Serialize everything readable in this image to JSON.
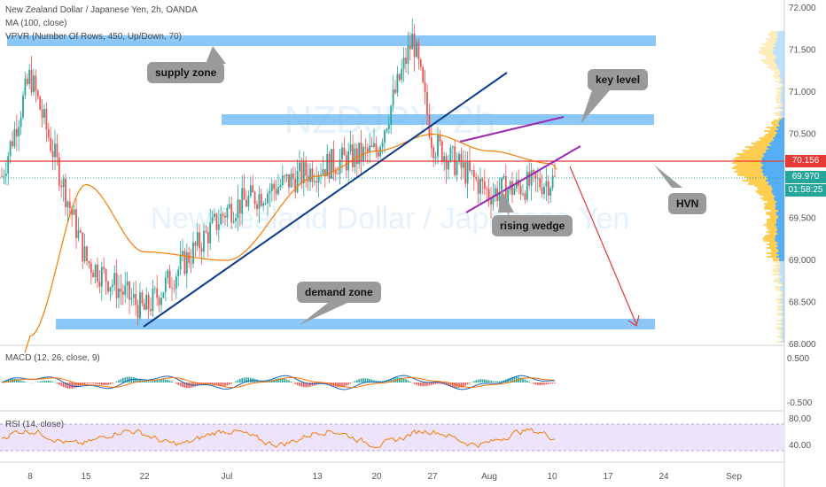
{
  "header": {
    "symbol_line": "New Zealand Dollar / Japanese Yen, 2h, OANDA",
    "ma_line": "MA (100, close)",
    "vpvr_line": "VPVR (Number Of Rows, 450, Up/Down, 70)",
    "macd_line": "MACD (12, 26, close, 9)",
    "rsi_line": "RSI (14, close)"
  },
  "watermark": {
    "ticker": "NZDJPY, 2h",
    "name": "New Zealand Dollar / Japanese Yen"
  },
  "annotations": {
    "supply_zone": "supply zone",
    "demand_zone": "demand zone",
    "key_level": "key level",
    "rising_wedge": "rising wedge",
    "hvn": "HVN"
  },
  "price_labels": {
    "current_line": "70.156",
    "last_price": "69.970",
    "countdown": "01:58:25"
  },
  "colors": {
    "zone_fill": "#64b5f6",
    "trendline": "#0d3c8c",
    "wedge": "#9c27b0",
    "ma": "#f57c00",
    "key_line": "#e53935",
    "up_candle": "#26a69a",
    "down_candle": "#ef5350",
    "macd": "#1565c0",
    "signal": "#ff6d00",
    "rsi": "#f57c00",
    "rsi_band": "#ede3fb",
    "vp_up": "#ffc83d",
    "vp_down": "#42a5f5"
  },
  "chart_data": [
    {
      "type": "line",
      "title": "New Zealand Dollar / Japanese Yen, 2h, OANDA",
      "x_ticks": [
        "8",
        "15",
        "22",
        "Jul",
        "13",
        "20",
        "27",
        "Aug",
        "10",
        "17",
        "24",
        "Sep"
      ],
      "y_ticks": [
        "72.000",
        "71.500",
        "71.000",
        "70.500",
        "70.000",
        "69.500",
        "69.000",
        "68.500",
        "68.000"
      ],
      "ylim": [
        68.0,
        72.0
      ],
      "price_path": [
        [
          "8",
          71.2
        ],
        [
          "15",
          69.0
        ],
        [
          "22",
          68.4
        ],
        [
          "Jul",
          69.6
        ],
        [
          "13",
          70.1
        ],
        [
          "20",
          70.3
        ],
        [
          "22Jul",
          71.65
        ],
        [
          "27",
          70.4
        ],
        [
          "Aug",
          69.8
        ],
        [
          "10",
          69.95
        ]
      ],
      "ma_path": [
        [
          "8",
          68.1
        ],
        [
          "15",
          69.9
        ],
        [
          "22",
          69.1
        ],
        [
          "Jul",
          69.0
        ],
        [
          "13",
          70.0
        ],
        [
          "20",
          70.3
        ],
        [
          "27",
          70.5
        ],
        [
          "Aug",
          70.3
        ],
        [
          "10",
          70.15
        ]
      ],
      "zones": [
        {
          "name": "supply zone",
          "low": 71.57,
          "high": 71.7
        },
        {
          "name": "key level",
          "low": 70.62,
          "high": 70.75
        },
        {
          "name": "demand zone",
          "low": 68.22,
          "high": 68.37
        }
      ],
      "horizontal_line": 70.156,
      "last_price": 69.97
    },
    {
      "type": "line",
      "title": "MACD (12, 26, close, 9)",
      "y_ticks": [
        "0.500",
        "-0.500"
      ],
      "ylim": [
        -0.6,
        0.6
      ]
    },
    {
      "type": "line",
      "title": "RSI (14, close)",
      "y_ticks": [
        "80.00",
        "40.00"
      ],
      "band": [
        30,
        70
      ],
      "ylim": [
        20,
        90
      ]
    }
  ]
}
